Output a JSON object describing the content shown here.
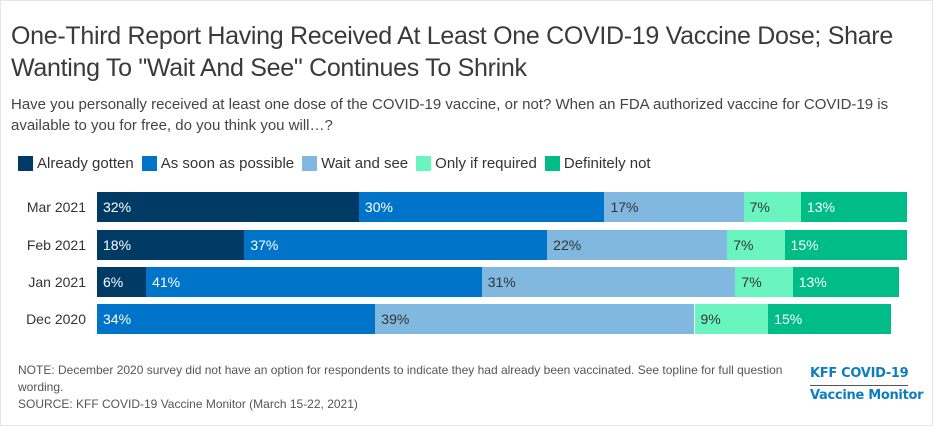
{
  "chart_data": {
    "type": "bar",
    "orientation": "horizontal",
    "stacked": true,
    "title": "One-Third Report Having Received At Least One COVID-19 Vaccine Dose; Share Wanting To \"Wait And See\" Continues To Shrink",
    "subtitle": "Have you personally received at least one dose of the COVID-19 vaccine, or not? When an FDA authorized vaccine for COVID-19 is available to you for free, do you think you will…?",
    "categories": [
      "Mar 2021",
      "Feb 2021",
      "Jan 2021",
      "Dec 2020"
    ],
    "series": [
      {
        "name": "Already gotten",
        "color": "#003b66",
        "label_color": "#ffffff",
        "values": [
          32,
          18,
          6,
          null
        ]
      },
      {
        "name": "As soon as possible",
        "color": "#0074c8",
        "label_color": "#ffffff",
        "values": [
          30,
          37,
          41,
          34
        ]
      },
      {
        "name": "Wait and see",
        "color": "#80b8e0",
        "label_color": "#333333",
        "values": [
          17,
          22,
          31,
          39
        ]
      },
      {
        "name": "Only if required",
        "color": "#6af5c0",
        "label_color": "#333333",
        "values": [
          7,
          7,
          7,
          9
        ]
      },
      {
        "name": "Definitely not",
        "color": "#00bd88",
        "label_color": "#ffffff",
        "values": [
          13,
          15,
          13,
          15
        ]
      }
    ],
    "value_suffix": "%",
    "xlim": [
      0,
      100
    ],
    "legend_position": "top-left",
    "grid": false
  },
  "footer": {
    "note": "NOTE: December 2020 survey did not have an option for respondents to indicate they had already been vaccinated. See topline for full question wording.",
    "source": "SOURCE: KFF COVID-19 Vaccine Monitor (March 15-22, 2021)",
    "logo_line1": "KFF COVID-19",
    "logo_line2": "Vaccine Monitor"
  }
}
